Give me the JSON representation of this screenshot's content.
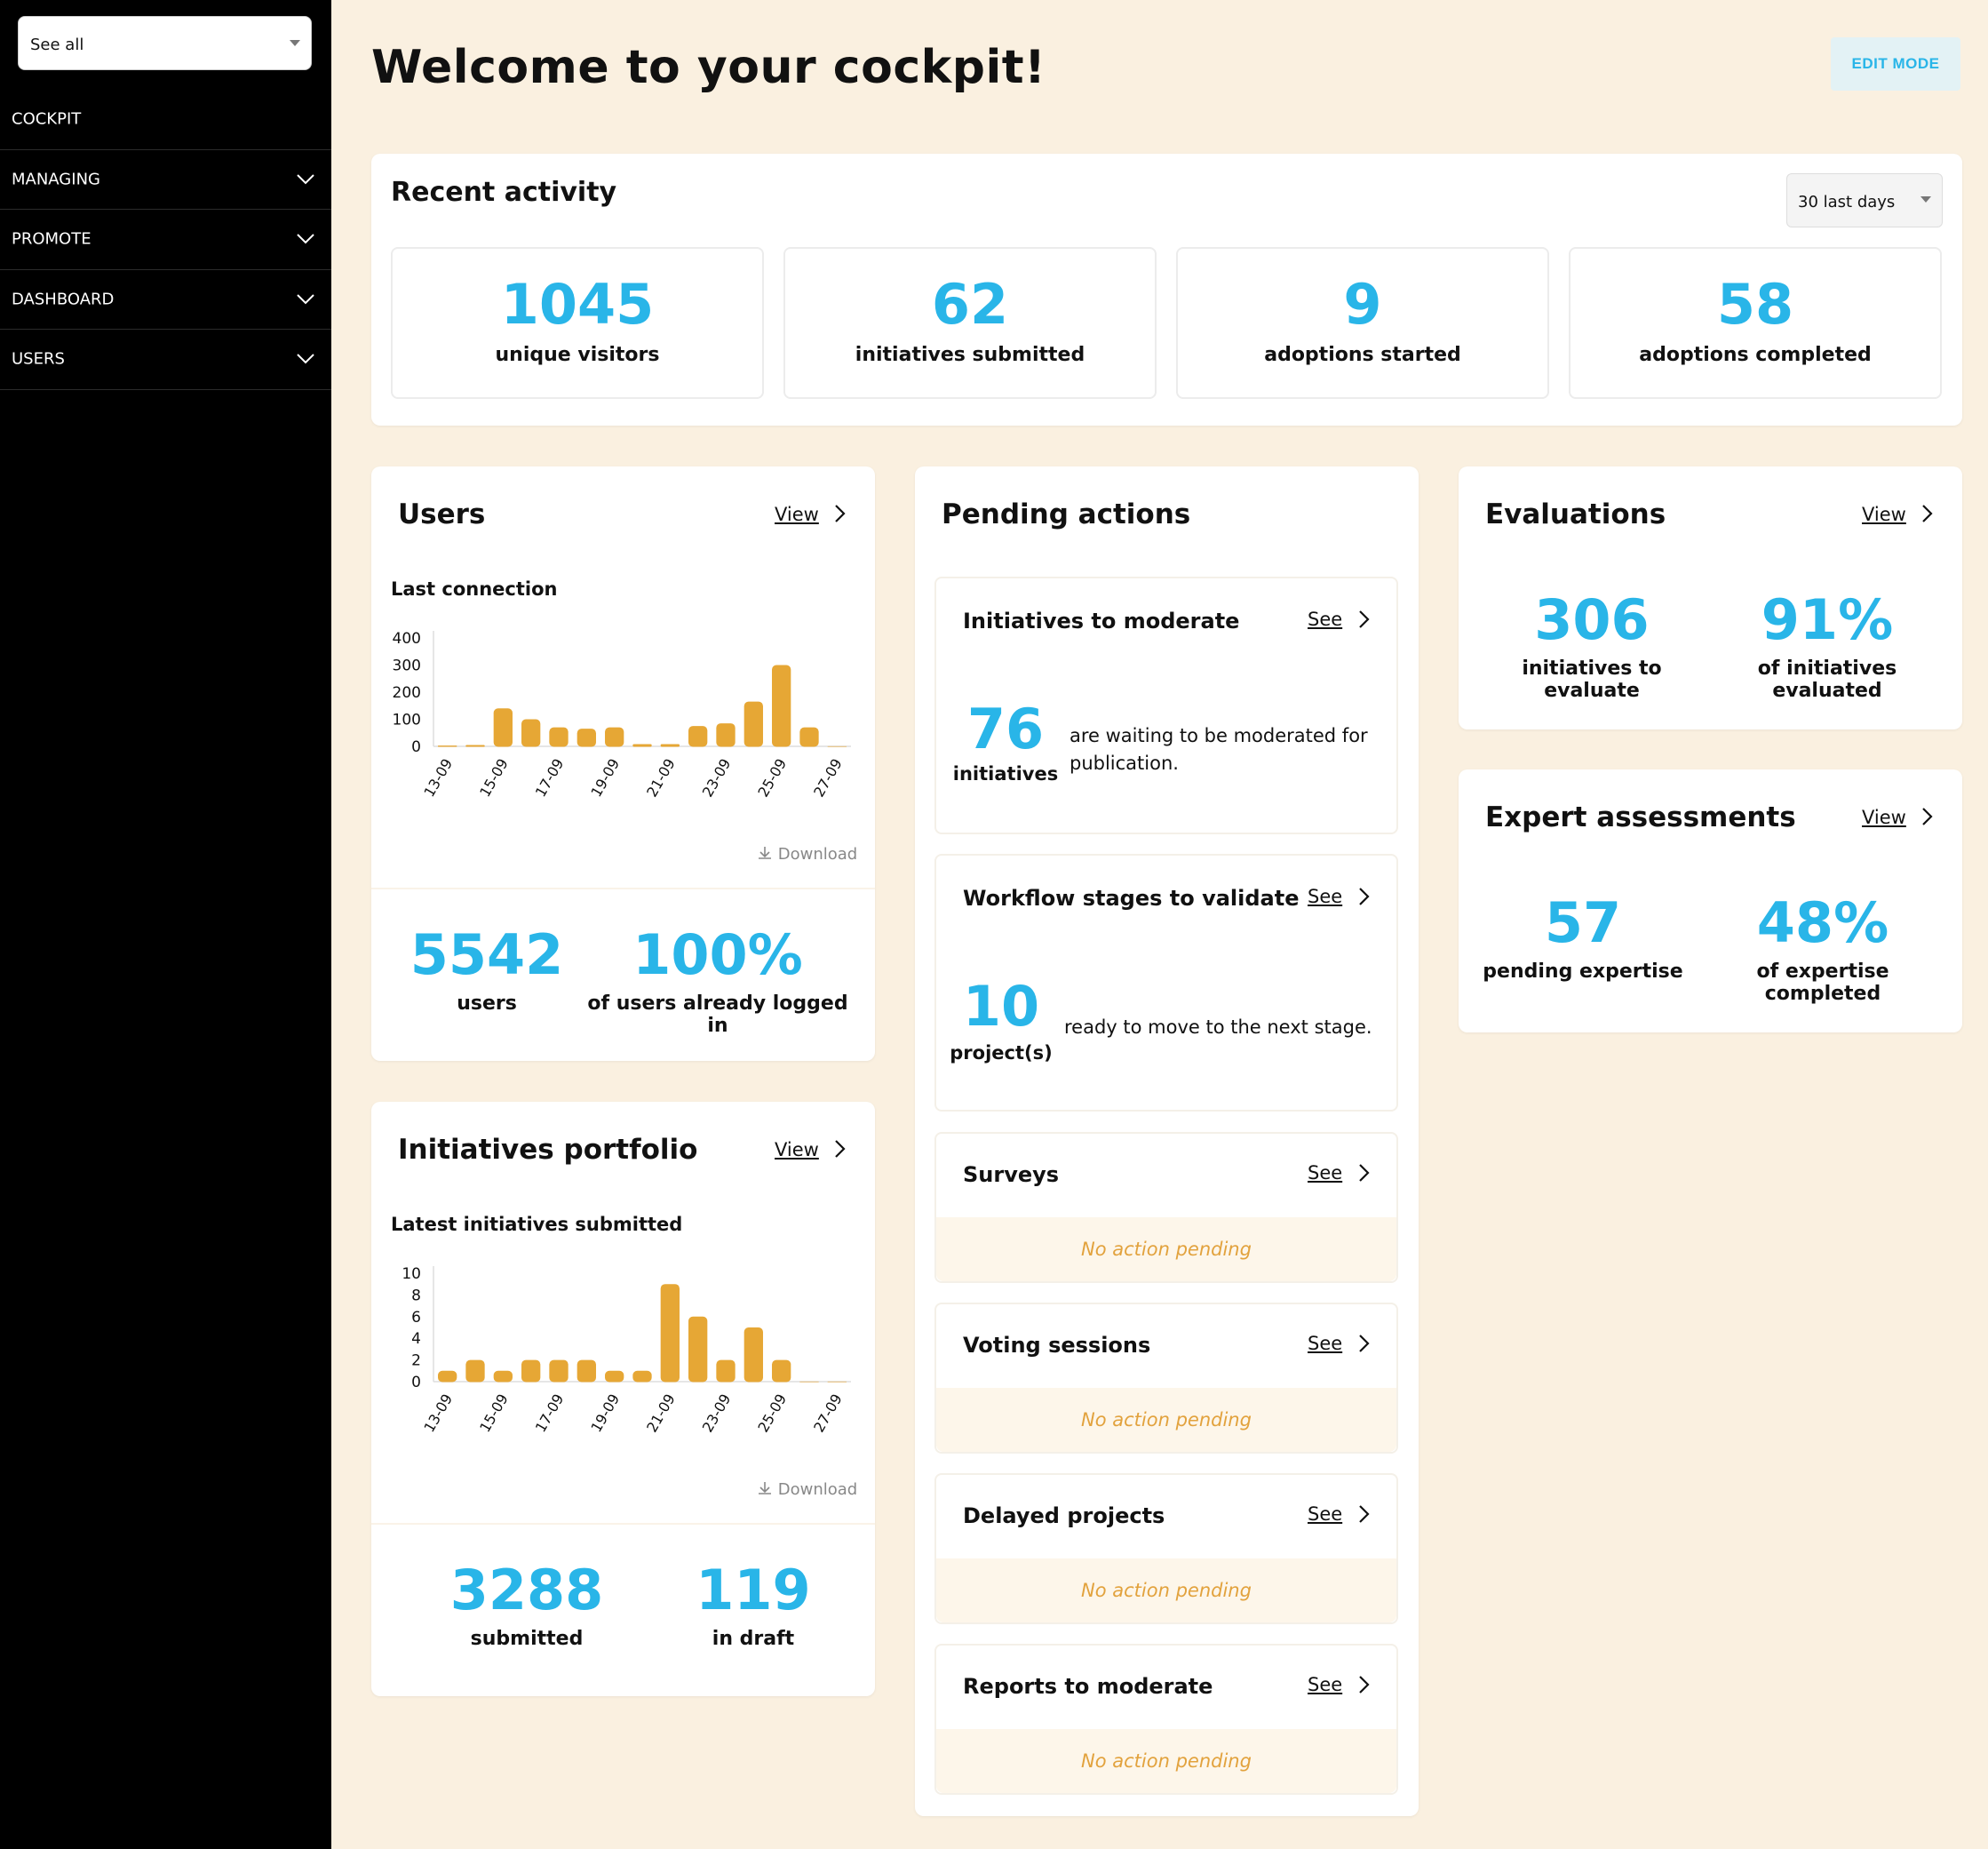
{
  "sidebar": {
    "filter_value": "See all",
    "items": [
      {
        "label": "COCKPIT"
      },
      {
        "label": "MANAGING"
      },
      {
        "label": "PROMOTE"
      },
      {
        "label": "DASHBOARD"
      },
      {
        "label": "USERS"
      }
    ]
  },
  "header": {
    "title": "Welcome to your cockpit!",
    "edit_mode_label": "EDIT MODE"
  },
  "recent_activity": {
    "title": "Recent activity",
    "period": "30 last days",
    "stats": [
      {
        "value": "1045",
        "label": "unique visitors"
      },
      {
        "value": "62",
        "label": "initiatives submitted"
      },
      {
        "value": "9",
        "label": "adoptions started"
      },
      {
        "value": "58",
        "label": "adoptions completed"
      }
    ]
  },
  "users": {
    "title": "Users",
    "view_label": "View",
    "chart_label": "Last connection",
    "download_label": "Download",
    "stats": [
      {
        "value": "5542",
        "label": "users"
      },
      {
        "value": "100%",
        "label": "of users already logged in"
      }
    ]
  },
  "portfolio": {
    "title": "Initiatives portfolio",
    "view_label": "View",
    "chart_label": "Latest initiatives submitted",
    "download_label": "Download",
    "stats": [
      {
        "value": "3288",
        "label": "submitted"
      },
      {
        "value": "119",
        "label": "in draft"
      }
    ]
  },
  "pending": {
    "title": "Pending actions",
    "see_label": "See",
    "moderate": {
      "title": "Initiatives to moderate",
      "value": "76",
      "unit": "initiatives",
      "text": "are waiting to be moderated for publication."
    },
    "workflow": {
      "title": "Workflow stages to validate",
      "value": "10",
      "unit": "project(s)",
      "text": "ready to move to the next stage."
    },
    "empty_sections": [
      {
        "title": "Surveys",
        "empty": "No action pending"
      },
      {
        "title": "Voting sessions",
        "empty": "No action pending"
      },
      {
        "title": "Delayed projects",
        "empty": "No action pending"
      },
      {
        "title": "Reports to moderate",
        "empty": "No action pending"
      }
    ]
  },
  "evaluations": {
    "title": "Evaluations",
    "view_label": "View",
    "stats": [
      {
        "value": "306",
        "label": "initiatives to evaluate"
      },
      {
        "value": "91%",
        "label": "of initiatives evaluated"
      }
    ]
  },
  "expert": {
    "title": "Expert assessments",
    "view_label": "View",
    "stats": [
      {
        "value": "57",
        "label": "pending expertise"
      },
      {
        "value": "48%",
        "label": "of expertise completed"
      }
    ]
  },
  "colors": {
    "accent": "#29b5e8",
    "bar": "#e6a735",
    "sidebar": "#000000",
    "background": "#faf0e0"
  },
  "chart_data": [
    {
      "type": "bar",
      "title": "Last connection",
      "categories": [
        "13-09",
        "14-09",
        "15-09",
        "16-09",
        "17-09",
        "18-09",
        "19-09",
        "20-09",
        "21-09",
        "22-09",
        "23-09",
        "24-09",
        "25-09",
        "26-09",
        "27-09"
      ],
      "x_tick_labels": [
        "13-09",
        "15-09",
        "17-09",
        "19-09",
        "21-09",
        "23-09",
        "25-09",
        "27-09"
      ],
      "values": [
        3,
        5,
        140,
        100,
        70,
        65,
        70,
        8,
        8,
        75,
        85,
        165,
        300,
        70,
        0
      ],
      "ylim": [
        0,
        400
      ],
      "y_ticks": [
        0,
        100,
        200,
        300,
        400
      ],
      "grid": false,
      "xlabel": "",
      "ylabel": ""
    },
    {
      "type": "bar",
      "title": "Latest initiatives submitted",
      "categories": [
        "13-09",
        "14-09",
        "15-09",
        "16-09",
        "17-09",
        "18-09",
        "19-09",
        "20-09",
        "21-09",
        "22-09",
        "23-09",
        "24-09",
        "25-09",
        "26-09",
        "27-09"
      ],
      "x_tick_labels": [
        "13-09",
        "15-09",
        "17-09",
        "19-09",
        "21-09",
        "23-09",
        "25-09",
        "27-09"
      ],
      "values": [
        1,
        2,
        1,
        2,
        2,
        2,
        1,
        1,
        9,
        6,
        2,
        5,
        2,
        0,
        0
      ],
      "ylim": [
        0,
        10
      ],
      "y_ticks": [
        0,
        2,
        4,
        6,
        8,
        10
      ],
      "grid": false,
      "xlabel": "",
      "ylabel": ""
    }
  ]
}
